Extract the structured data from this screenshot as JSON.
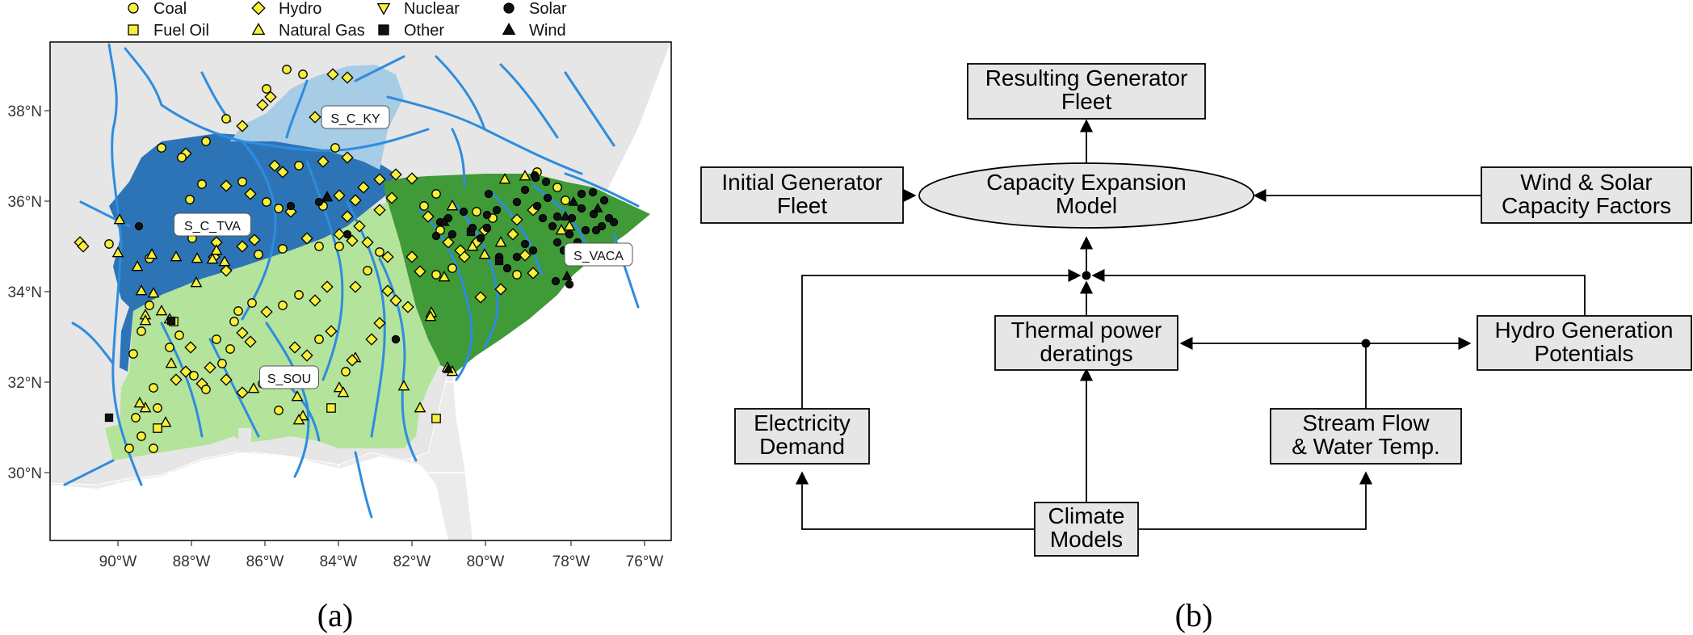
{
  "legend": {
    "items": [
      {
        "label": "Coal",
        "marker": "circle",
        "fill": "#f7ef3a"
      },
      {
        "label": "Fuel Oil",
        "marker": "square",
        "fill": "#f7ef3a"
      },
      {
        "label": "Hydro",
        "marker": "diamond",
        "fill": "#f7ef3a"
      },
      {
        "label": "Natural Gas",
        "marker": "triangle",
        "fill": "#f7ef3a"
      },
      {
        "label": "Nuclear",
        "marker": "triangle-down",
        "fill": "#f7ef3a"
      },
      {
        "label": "Other",
        "marker": "square",
        "fill": "#111111"
      },
      {
        "label": "Solar",
        "marker": "circle",
        "fill": "#111111"
      },
      {
        "label": "Wind",
        "marker": "triangle",
        "fill": "#111111"
      }
    ]
  },
  "map": {
    "lon_ticks": [
      "90°W",
      "88°W",
      "86°W",
      "84°W",
      "82°W",
      "80°W",
      "78°W",
      "76°W"
    ],
    "lat_ticks": [
      "38°N",
      "36°N",
      "34°N",
      "32°N",
      "30°N"
    ],
    "regions": [
      {
        "label": "S_C_KY",
        "color": "#a6cce6"
      },
      {
        "label": "S_C_TVA",
        "color": "#2d74b6"
      },
      {
        "label": "S_VACA",
        "color": "#3f9a37"
      },
      {
        "label": "S_SOU",
        "color": "#b4e39c"
      }
    ],
    "river_color": "#2f8cde",
    "caption": "(a)"
  },
  "diagram": {
    "nodes": {
      "resulting_fleet": [
        "Resulting Generator",
        "Fleet"
      ],
      "initial_fleet": [
        "Initial Generator",
        "Fleet"
      ],
      "cem": [
        "Capacity Expansion",
        "Model"
      ],
      "wind_solar": [
        "Wind & Solar",
        "Capacity Factors"
      ],
      "thermal": [
        "Thermal power",
        "deratings"
      ],
      "hydro": [
        "Hydro Generation",
        "Potentials"
      ],
      "demand": [
        "Electricity",
        "Demand"
      ],
      "streamflow": [
        "Stream Flow",
        "& Water Temp."
      ],
      "climate": [
        "Climate",
        "Models"
      ]
    },
    "caption": "(b)"
  }
}
